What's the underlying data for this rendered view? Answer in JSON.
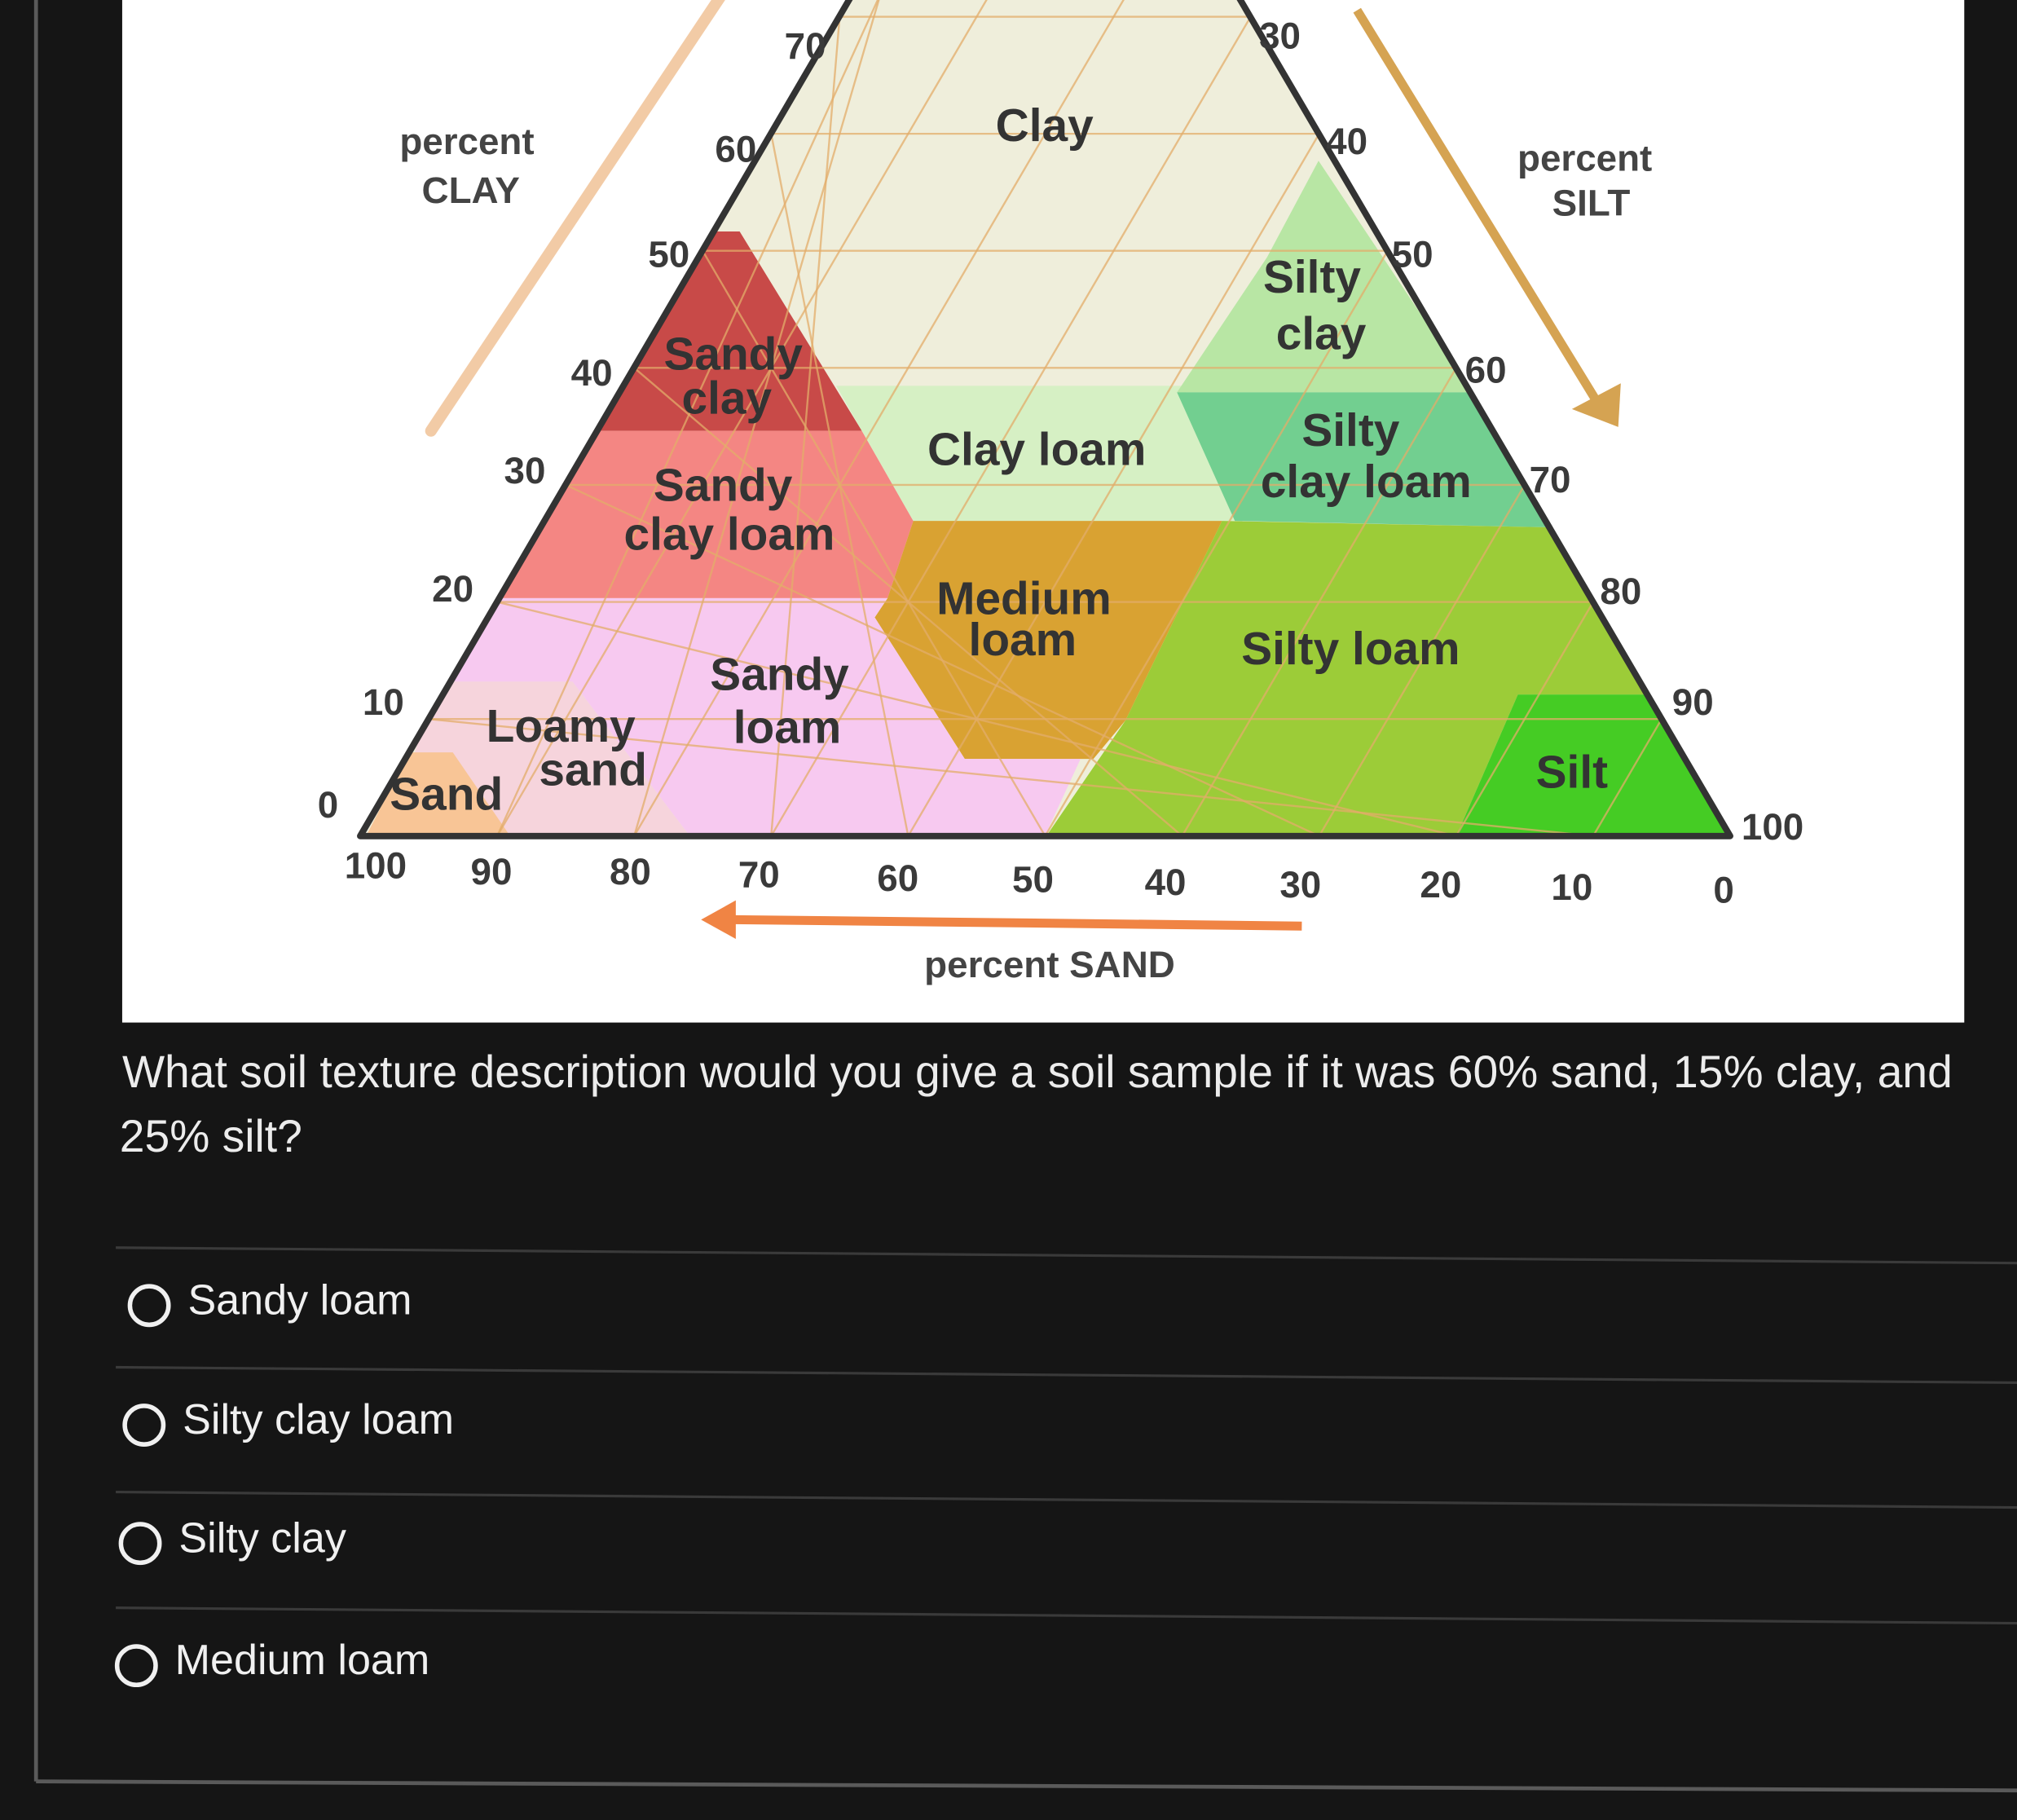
{
  "diagram": {
    "clay_axis": {
      "title": [
        "percent",
        "CLAY"
      ],
      "ticks": [
        0,
        10,
        20,
        30,
        40,
        50,
        60,
        70
      ]
    },
    "silt_axis": {
      "title": [
        "percent",
        "SILT"
      ],
      "ticks": [
        30,
        40,
        50,
        60,
        70,
        80,
        90,
        100
      ]
    },
    "sand_axis": {
      "title": "percent SAND",
      "ticks": [
        100,
        90,
        80,
        70,
        60,
        50,
        40,
        30,
        20,
        10,
        0
      ]
    },
    "regions": [
      {
        "label": [
          "Clay"
        ]
      },
      {
        "label": [
          "Sandy",
          "clay"
        ]
      },
      {
        "label": [
          "Sandy",
          "clay loam"
        ]
      },
      {
        "label": [
          "Clay loam"
        ]
      },
      {
        "label": [
          "Silty",
          "clay"
        ]
      },
      {
        "label": [
          "Silty",
          "clay loam"
        ]
      },
      {
        "label": [
          "Medium",
          "loam"
        ]
      },
      {
        "label": [
          "Silty loam"
        ]
      },
      {
        "label": [
          "Sandy",
          "loam"
        ]
      },
      {
        "label": [
          "Loamy",
          "sand"
        ]
      },
      {
        "label": [
          "Sand"
        ]
      },
      {
        "label": [
          "Silt"
        ]
      }
    ]
  },
  "question": {
    "text": [
      "What soil texture description would you give a soil sample if it was 60% sand, 15% clay, and",
      "25% silt?"
    ],
    "options": [
      "Sandy loam",
      "Silty clay loam",
      "Silty clay",
      "Medium loam"
    ]
  }
}
